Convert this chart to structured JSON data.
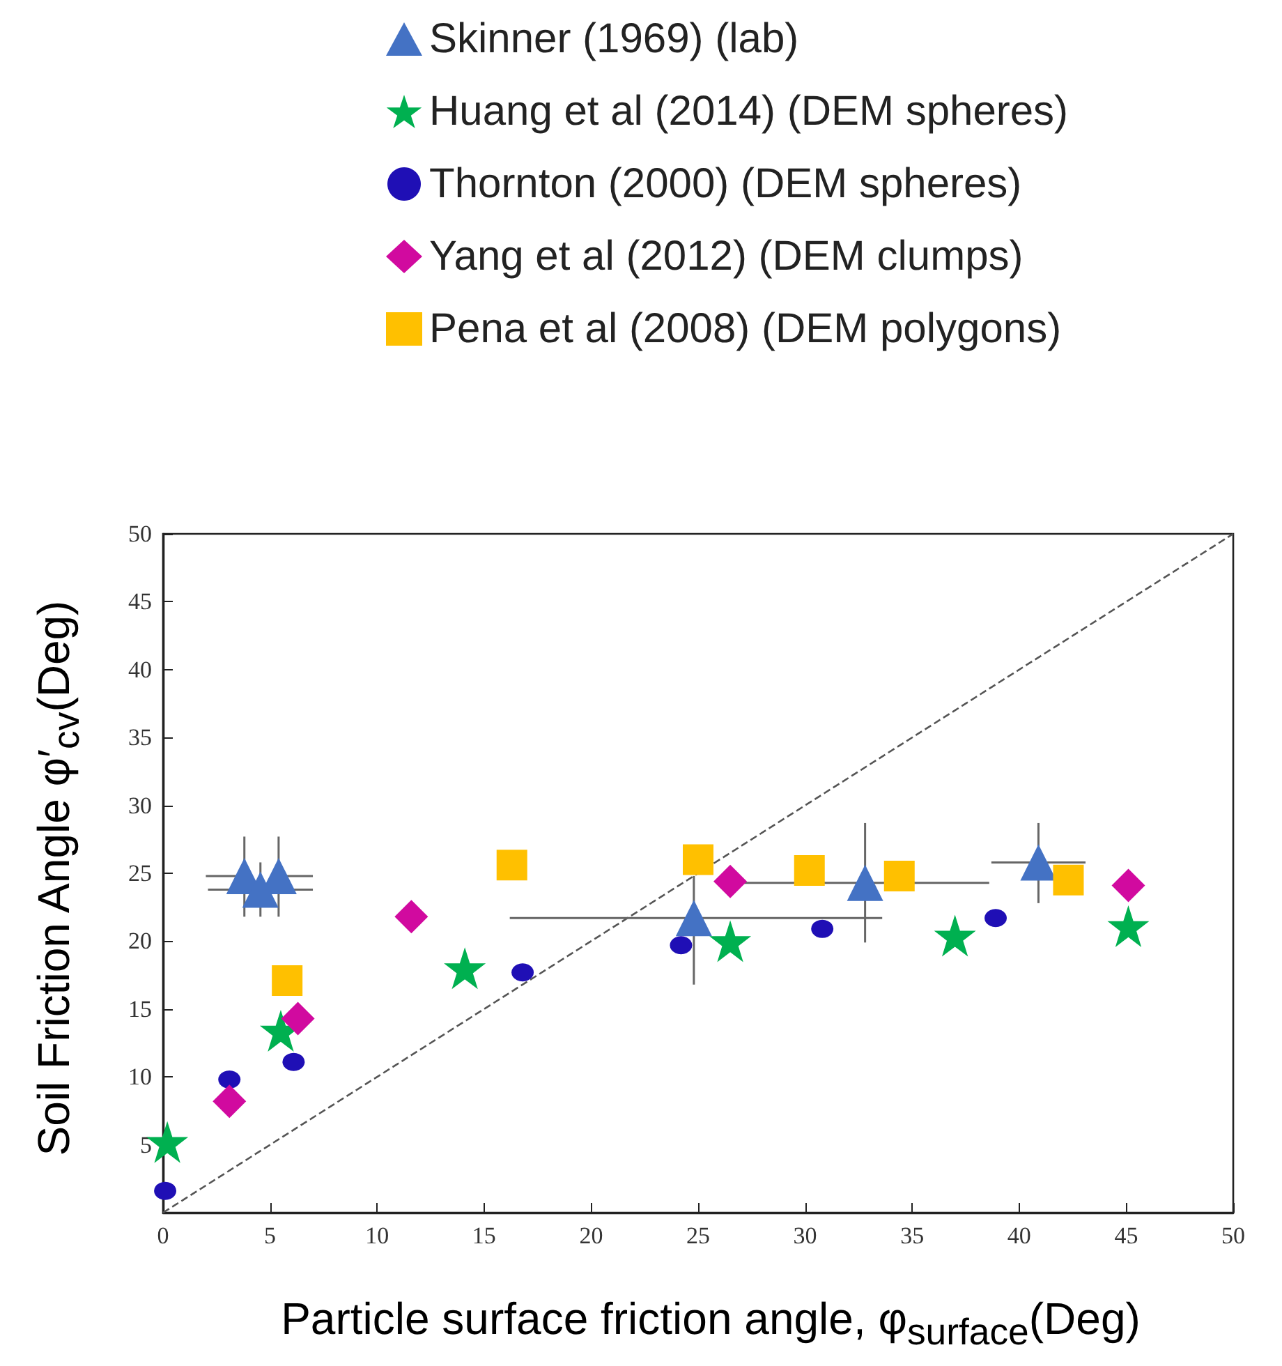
{
  "chart_data": {
    "type": "scatter",
    "xlabel": "Particle surface friction angle, φ$_{surface}$(Deg)",
    "ylabel": "Soil Friction Angle φ′$_{cv}$(Deg)",
    "xlim": [
      0,
      50
    ],
    "ylim": [
      0,
      50
    ],
    "xticks": [
      0,
      5,
      10,
      15,
      20,
      25,
      30,
      35,
      40,
      45,
      50
    ],
    "yticks": [
      {
        "value": 0,
        "label": null
      },
      5,
      10,
      15,
      20,
      25,
      30,
      35,
      40,
      45,
      50
    ],
    "legend": "top",
    "grid": false,
    "series": [
      {
        "name": "Skinner (1969) (lab)",
        "color": "#4472c4",
        "marker": "triangle",
        "x": [
          3.8,
          5.4,
          4.55,
          24.8,
          32.8,
          40.9
        ],
        "values": [
          24.8,
          24.8,
          23.8,
          21.7,
          24.3,
          25.8
        ],
        "errors": [
          [
            21.8,
            27.7
          ],
          [
            21.8,
            27.7
          ],
          [
            21.8,
            25.8
          ],
          [
            16.8,
            24.8
          ],
          [
            19.9,
            28.7
          ],
          [
            22.8,
            28.7
          ]
        ],
        "xerrors": [
          [
            2.0,
            3.8
          ],
          [
            5.4,
            7.0
          ],
          [
            2.1,
            7.0
          ],
          [
            16.2,
            33.6
          ],
          [
            27.1,
            38.6
          ],
          [
            38.7,
            43.1
          ]
        ]
      },
      {
        "name": "Huang et al (2014) (DEM spheres)",
        "color": "#00b050",
        "marker": "star",
        "x": [
          0.2,
          5.5,
          14.1,
          26.5,
          37.0,
          45.1
        ],
        "values": [
          5.2,
          13.4,
          18.0,
          20.0,
          20.4,
          21.1
        ]
      },
      {
        "name": "Thornton (2000) (DEM spheres)",
        "color": "#1f0fb5",
        "marker": "circle",
        "x": [
          0.1,
          3.1,
          6.1,
          16.8,
          24.2,
          30.8,
          38.9
        ],
        "values": [
          1.6,
          9.8,
          11.1,
          17.7,
          19.7,
          20.9,
          21.7
        ]
      },
      {
        "name": "Yang et al (2012) (DEM clumps)",
        "color": "#d10a9f",
        "marker": "diamond",
        "x": [
          3.1,
          6.3,
          11.6,
          26.5,
          45.1
        ],
        "values": [
          8.2,
          14.3,
          21.8,
          24.4,
          24.1
        ]
      },
      {
        "name": "Pena et al (2008) (DEM polygons)",
        "color": "#ffc000",
        "marker": "square",
        "x": [
          5.8,
          16.3,
          25.0,
          30.2,
          34.4,
          42.3
        ],
        "values": [
          17.1,
          25.6,
          26.0,
          25.2,
          24.8,
          24.5
        ]
      },
      {
        "type": "line",
        "color": "#555555",
        "line_style": "dashed",
        "marker": "none",
        "x": [
          0,
          50
        ],
        "values": [
          0,
          50
        ]
      }
    ]
  }
}
